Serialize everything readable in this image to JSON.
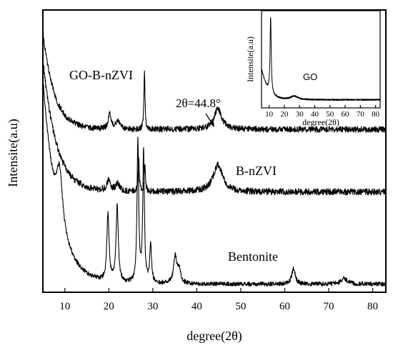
{
  "chart_data": {
    "type": "line",
    "xlabel": "degree(2θ)",
    "ylabel": "Intensite(a.u)",
    "xlim": [
      5,
      83
    ],
    "x_ticks": [
      10,
      20,
      30,
      40,
      50,
      60,
      70,
      80
    ],
    "grid": false,
    "legend": "none (series labeled directly on curves)",
    "series": [
      {
        "name": "GO-B-nZVI",
        "color": "#000000",
        "baseline": 6.0,
        "start_value": 9.6,
        "decay_rate": 0.38,
        "noise": 0.11,
        "peaks": [
          {
            "x": 20.2,
            "height": 0.55,
            "width": 0.4
          },
          {
            "x": 22.1,
            "height": 0.35,
            "width": 0.5
          },
          {
            "x": 28.1,
            "height": 2.1,
            "width": 0.15
          },
          {
            "x": 44.8,
            "height": 0.75,
            "width": 1.1
          }
        ]
      },
      {
        "name": "B-nZVI",
        "color": "#000000",
        "baseline": 3.7,
        "start_value": 8.6,
        "decay_rate": 0.33,
        "noise": 0.12,
        "peaks": [
          {
            "x": 20.0,
            "height": 0.4,
            "width": 0.5
          },
          {
            "x": 22.0,
            "height": 0.3,
            "width": 0.5
          },
          {
            "x": 26.8,
            "height": 1.3,
            "width": 0.15
          },
          {
            "x": 28.2,
            "height": 1.0,
            "width": 0.15
          },
          {
            "x": 44.8,
            "height": 1.0,
            "width": 1.3
          }
        ]
      },
      {
        "name": "Bentonite",
        "color": "#000000",
        "baseline": 0.3,
        "start_value": 7.8,
        "decay_rate": 0.3,
        "noise": 0.08,
        "peaks": [
          {
            "x": 8.8,
            "height": 2.0,
            "width": 0.8
          },
          {
            "x": 19.8,
            "height": 2.5,
            "width": 0.3
          },
          {
            "x": 21.9,
            "height": 2.8,
            "width": 0.3
          },
          {
            "x": 26.6,
            "height": 5.3,
            "width": 0.22
          },
          {
            "x": 27.9,
            "height": 4.8,
            "width": 0.22
          },
          {
            "x": 29.5,
            "height": 1.4,
            "width": 0.25
          },
          {
            "x": 35.1,
            "height": 1.0,
            "width": 0.45
          },
          {
            "x": 36.0,
            "height": 0.5,
            "width": 0.4
          },
          {
            "x": 62.0,
            "height": 0.6,
            "width": 0.45
          },
          {
            "x": 73.5,
            "height": 0.2,
            "width": 0.9
          }
        ]
      }
    ],
    "labels": {
      "go_b_nzvi": "GO-B-nZVI",
      "b_nzvi": "B-nZVI",
      "bentonite": "Bentonite",
      "peak_annotation": "2θ=44.8°"
    },
    "inset": {
      "type": "line",
      "xlabel": "degree(2θ)",
      "ylabel": "Intensite(a.u)",
      "xlim": [
        5,
        83
      ],
      "x_ticks": [
        10,
        20,
        30,
        40,
        50,
        60,
        70,
        80
      ],
      "series": [
        {
          "name": "GO",
          "baseline": 0.45,
          "start_value": 2.2,
          "decay_rate": 0.25,
          "noise": 0.04,
          "peaks": [
            {
              "x": 11.0,
              "height": 4.2,
              "width": 0.45
            },
            {
              "x": 26.5,
              "height": 0.2,
              "width": 3.0
            }
          ]
        }
      ]
    }
  }
}
